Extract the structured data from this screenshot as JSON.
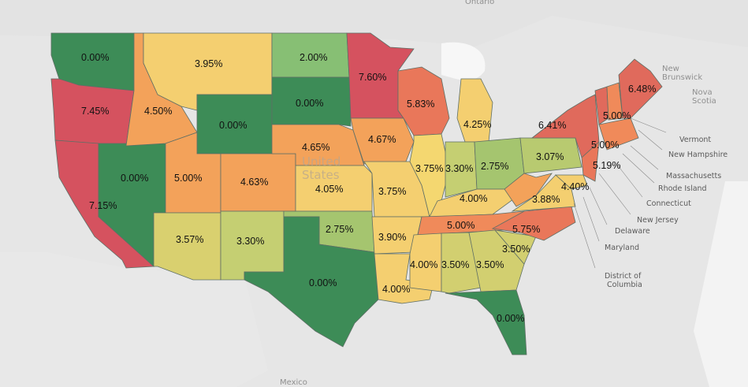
{
  "base_labels": {
    "country_us": "United States",
    "mexico": "Mexico",
    "ontario": "Ontario",
    "new_brunswick": "New Brunswick",
    "nova_scotia": "Nova Scotia"
  },
  "colors": {
    "dark_green": "#3d8c57",
    "green": "#87bf74",
    "yellow_green": "#c5cf72",
    "yellow": "#f4cf70",
    "orange": "#f3a25a",
    "red_orange": "#e9775a",
    "red": "#d5525f"
  },
  "callouts": [
    "Vermont",
    "New Hampshire",
    "Massachusetts",
    "Rhode Island",
    "Connecticut",
    "New Jersey",
    "Delaware",
    "Maryland",
    "District of Columbia"
  ],
  "states": [
    {
      "id": "WA",
      "value": "0.00%",
      "color": "#3d8c57"
    },
    {
      "id": "OR",
      "value": "7.45%",
      "color": "#d5525f"
    },
    {
      "id": "CA",
      "value": "7.15%",
      "color": "#d5525f"
    },
    {
      "id": "NV",
      "value": "0.00%",
      "color": "#3d8c57"
    },
    {
      "id": "ID",
      "value": "4.50%",
      "color": "#f3a25a"
    },
    {
      "id": "MT",
      "value": "3.95%",
      "color": "#f4cf70"
    },
    {
      "id": "WY",
      "value": "0.00%",
      "color": "#3d8c57"
    },
    {
      "id": "UT",
      "value": "5.00%",
      "color": "#f3a25a"
    },
    {
      "id": "AZ",
      "value": "3.57%",
      "color": "#d9d06f"
    },
    {
      "id": "CO",
      "value": "4.63%",
      "color": "#f3a25a"
    },
    {
      "id": "NM",
      "value": "3.30%",
      "color": "#c5cf72"
    },
    {
      "id": "ND",
      "value": "2.00%",
      "color": "#87bf74"
    },
    {
      "id": "SD",
      "value": "0.00%",
      "color": "#3d8c57"
    },
    {
      "id": "NE",
      "value": "4.65%",
      "color": "#f3a25a"
    },
    {
      "id": "KS",
      "value": "4.05%",
      "color": "#f4cf70"
    },
    {
      "id": "OK",
      "value": "2.75%",
      "color": "#a5c56f"
    },
    {
      "id": "TX",
      "value": "0.00%",
      "color": "#3d8c57"
    },
    {
      "id": "MN",
      "value": "7.60%",
      "color": "#d5525f"
    },
    {
      "id": "IA",
      "value": "4.67%",
      "color": "#f3a25a"
    },
    {
      "id": "MO",
      "value": "3.75%",
      "color": "#f4cf70"
    },
    {
      "id": "AR",
      "value": "3.90%",
      "color": "#f4cf70"
    },
    {
      "id": "LA",
      "value": "4.00%",
      "color": "#f4cf70"
    },
    {
      "id": "WI",
      "value": "5.83%",
      "color": "#e9775a"
    },
    {
      "id": "IL",
      "value": "3.75%",
      "color": "#f4d770"
    },
    {
      "id": "MI",
      "value": "4.25%",
      "color": "#f4cf70"
    },
    {
      "id": "IN",
      "value": "3.30%",
      "color": "#c5cf72"
    },
    {
      "id": "OH",
      "value": "2.75%",
      "color": "#a5c56f"
    },
    {
      "id": "KY",
      "value": "4.00%",
      "color": "#f4cf70"
    },
    {
      "id": "TN",
      "value": "5.00%",
      "color": "#f08a5a"
    },
    {
      "id": "MS",
      "value": "4.00%",
      "color": "#f4cf70"
    },
    {
      "id": "AL",
      "value": "3.50%",
      "color": "#d2cf70"
    },
    {
      "id": "GA",
      "value": "3.50%",
      "color": "#d2cf70"
    },
    {
      "id": "FL",
      "value": "0.00%",
      "color": "#3d8c57"
    },
    {
      "id": "SC",
      "value": "3.50%",
      "color": "#d2cf70"
    },
    {
      "id": "NC",
      "value": "5.75%",
      "color": "#e9775a"
    },
    {
      "id": "VA",
      "value": "3.88%",
      "color": "#f4cf70"
    },
    {
      "id": "WV",
      "value": "",
      "color": "#f3a25a"
    },
    {
      "id": "PA",
      "value": "3.07%",
      "color": "#b8ca70"
    },
    {
      "id": "NY",
      "value": "6.41%",
      "color": "#e06a5c"
    },
    {
      "id": "ME",
      "value": "6.48%",
      "color": "#e06a5c"
    },
    {
      "id": "NH",
      "value": "5.00%",
      "color": "#f08a5a"
    },
    {
      "id": "VT",
      "value": "",
      "color": "#e06a5c"
    },
    {
      "id": "MA",
      "value": "5.00%",
      "color": "#f08a5a"
    },
    {
      "id": "NJ",
      "value": "5.19%",
      "color": "#e9775a"
    },
    {
      "id": "MD",
      "value": "4.40%",
      "color": "#f4cf70"
    }
  ]
}
